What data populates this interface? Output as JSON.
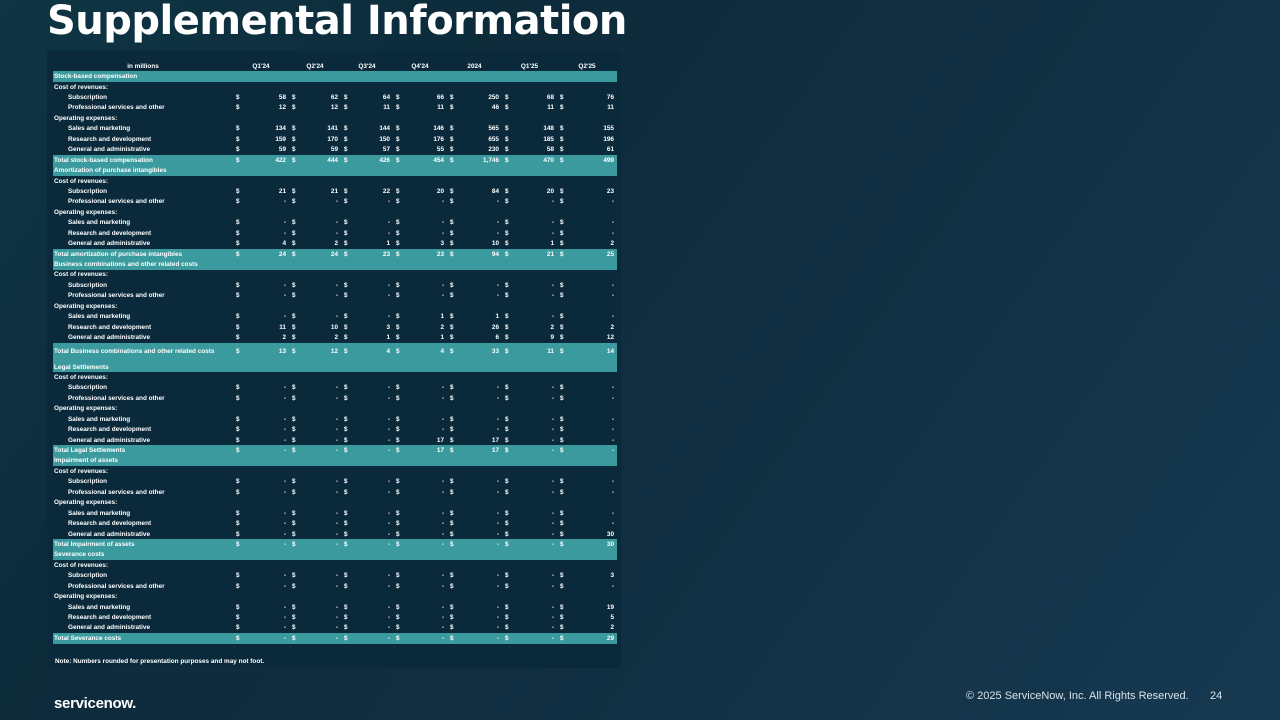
{
  "title": "Supplemental Information",
  "table": {
    "columns": [
      "in millions",
      "Q1'24",
      "Q2'24",
      "Q3'24",
      "Q4'24",
      "2024",
      "Q1'25",
      "Q2'25"
    ],
    "rows": [
      {
        "kind": "section",
        "label": "Stock-based compensation"
      },
      {
        "kind": "group",
        "label": "Cost of revenues:"
      },
      {
        "kind": "item",
        "label": "Subscription",
        "values": [
          "58",
          "62",
          "64",
          "66",
          "250",
          "68",
          "76"
        ]
      },
      {
        "kind": "item",
        "label": "Professional services and other",
        "values": [
          "12",
          "12",
          "11",
          "11",
          "46",
          "11",
          "11"
        ]
      },
      {
        "kind": "group",
        "label": "Operating expenses:"
      },
      {
        "kind": "item",
        "label": "Sales and marketing",
        "values": [
          "134",
          "141",
          "144",
          "146",
          "565",
          "148",
          "155"
        ]
      },
      {
        "kind": "item",
        "label": "Research and development",
        "values": [
          "159",
          "170",
          "150",
          "176",
          "655",
          "185",
          "196"
        ]
      },
      {
        "kind": "item",
        "label": "General and administrative",
        "values": [
          "59",
          "59",
          "57",
          "55",
          "230",
          "58",
          "61"
        ]
      },
      {
        "kind": "total",
        "label": "Total stock-based compensation",
        "values": [
          "422",
          "444",
          "426",
          "454",
          "1,746",
          "470",
          "499"
        ]
      },
      {
        "kind": "section",
        "label": "Amortization of purchase intangibles"
      },
      {
        "kind": "group",
        "label": "Cost of revenues:"
      },
      {
        "kind": "item",
        "label": "Subscription",
        "values": [
          "21",
          "21",
          "22",
          "20",
          "84",
          "20",
          "23"
        ]
      },
      {
        "kind": "item",
        "label": "Professional services and other",
        "values": [
          "-",
          "-",
          "-",
          "-",
          "-",
          "-",
          "-"
        ]
      },
      {
        "kind": "group",
        "label": "Operating expenses:"
      },
      {
        "kind": "item",
        "label": "Sales and marketing",
        "values": [
          "-",
          "-",
          "-",
          "-",
          "-",
          "-",
          "-"
        ]
      },
      {
        "kind": "item",
        "label": "Research and development",
        "values": [
          "-",
          "-",
          "-",
          "-",
          "-",
          "-",
          "-"
        ]
      },
      {
        "kind": "item",
        "label": "General and administrative",
        "values": [
          "4",
          "2",
          "1",
          "3",
          "10",
          "1",
          "2"
        ]
      },
      {
        "kind": "total",
        "label": "Total amortization of purchase intangibles",
        "values": [
          "24",
          "24",
          "23",
          "23",
          "94",
          "21",
          "25"
        ]
      },
      {
        "kind": "section",
        "label": "Business combinations and other related costs"
      },
      {
        "kind": "group",
        "label": "Cost of revenues:"
      },
      {
        "kind": "item",
        "label": "Subscription",
        "values": [
          "-",
          "-",
          "-",
          "-",
          "-",
          "-",
          "-"
        ]
      },
      {
        "kind": "item",
        "label": "Professional services and other",
        "values": [
          "-",
          "-",
          "-",
          "-",
          "-",
          "-",
          "-"
        ]
      },
      {
        "kind": "group",
        "label": "Operating expenses:"
      },
      {
        "kind": "item",
        "label": "Sales and marketing",
        "values": [
          "-",
          "-",
          "-",
          "1",
          "1",
          "-",
          "-"
        ]
      },
      {
        "kind": "item",
        "label": "Research and development",
        "values": [
          "11",
          "10",
          "3",
          "2",
          "26",
          "2",
          "2"
        ]
      },
      {
        "kind": "item",
        "label": "General and administrative",
        "values": [
          "2",
          "2",
          "1",
          "1",
          "6",
          "9",
          "12"
        ]
      },
      {
        "kind": "total",
        "tall": true,
        "label": "Total Business combinations and other related costs",
        "values": [
          "13",
          "12",
          "4",
          "4",
          "33",
          "11",
          "14"
        ]
      },
      {
        "kind": "section",
        "label": "Legal Settlements"
      },
      {
        "kind": "group",
        "label": "Cost of revenues:"
      },
      {
        "kind": "item",
        "label": "Subscription",
        "values": [
          "-",
          "-",
          "-",
          "-",
          "-",
          "-",
          "-"
        ]
      },
      {
        "kind": "item",
        "label": "Professional services and other",
        "values": [
          "-",
          "-",
          "-",
          "-",
          "-",
          "-",
          "-"
        ]
      },
      {
        "kind": "group",
        "label": "Operating expenses:"
      },
      {
        "kind": "item",
        "label": "Sales and marketing",
        "values": [
          "-",
          "-",
          "-",
          "-",
          "-",
          "-",
          "-"
        ]
      },
      {
        "kind": "item",
        "label": "Research and development",
        "values": [
          "-",
          "-",
          "-",
          "-",
          "-",
          "-",
          "-"
        ]
      },
      {
        "kind": "item",
        "label": "General and administrative",
        "values": [
          "-",
          "-",
          "-",
          "17",
          "17",
          "-",
          "-"
        ]
      },
      {
        "kind": "total",
        "label": "Total Legal Settlements",
        "values": [
          "-",
          "-",
          "-",
          "17",
          "17",
          "-",
          "-"
        ]
      },
      {
        "kind": "section",
        "label": "Impairment of assets"
      },
      {
        "kind": "group",
        "label": "Cost of revenues:"
      },
      {
        "kind": "item",
        "label": "Subscription",
        "values": [
          "-",
          "-",
          "-",
          "-",
          "-",
          "-",
          "-"
        ]
      },
      {
        "kind": "item",
        "label": "Professional services and other",
        "values": [
          "-",
          "-",
          "-",
          "-",
          "-",
          "-",
          "-"
        ]
      },
      {
        "kind": "group",
        "label": "Operating expenses:"
      },
      {
        "kind": "item",
        "label": "Sales and marketing",
        "values": [
          "-",
          "-",
          "-",
          "-",
          "-",
          "-",
          "-"
        ]
      },
      {
        "kind": "item",
        "label": "Research and development",
        "values": [
          "-",
          "-",
          "-",
          "-",
          "-",
          "-",
          "-"
        ]
      },
      {
        "kind": "item",
        "label": "General and administrative",
        "values": [
          "-",
          "-",
          "-",
          "-",
          "-",
          "-",
          "30"
        ]
      },
      {
        "kind": "total",
        "label": "Total Impairment of assets",
        "values": [
          "-",
          "-",
          "-",
          "-",
          "-",
          "-",
          "30"
        ]
      },
      {
        "kind": "section",
        "label": "Severance costs"
      },
      {
        "kind": "group",
        "label": "Cost of revenues:"
      },
      {
        "kind": "item",
        "label": "Subscription",
        "values": [
          "-",
          "-",
          "-",
          "-",
          "-",
          "-",
          "3"
        ]
      },
      {
        "kind": "item",
        "label": "Professional services and other",
        "values": [
          "-",
          "-",
          "-",
          "-",
          "-",
          "-",
          "-"
        ]
      },
      {
        "kind": "group",
        "label": "Operating expenses:"
      },
      {
        "kind": "item",
        "label": "Sales and marketing",
        "values": [
          "-",
          "-",
          "-",
          "-",
          "-",
          "-",
          "19"
        ]
      },
      {
        "kind": "item",
        "label": "Research and development",
        "values": [
          "-",
          "-",
          "-",
          "-",
          "-",
          "-",
          "5"
        ]
      },
      {
        "kind": "item",
        "label": "General and administrative",
        "values": [
          "-",
          "-",
          "-",
          "-",
          "-",
          "-",
          "2"
        ]
      },
      {
        "kind": "total",
        "label": "Total Severance costs",
        "values": [
          "-",
          "-",
          "-",
          "-",
          "-",
          "-",
          "29"
        ]
      }
    ],
    "currency_symbol": "$"
  },
  "note": "Note: Numbers rounded for presentation purposes and may not foot.",
  "footer": {
    "logo": "servicenow.",
    "copyright": "© 2025 ServiceNow, Inc. All Rights Reserved.",
    "page_number": "24"
  },
  "colors": {
    "background": "#0d2b3a",
    "panel": "#0a2a3b",
    "highlight_row": "#3b9a9e"
  }
}
